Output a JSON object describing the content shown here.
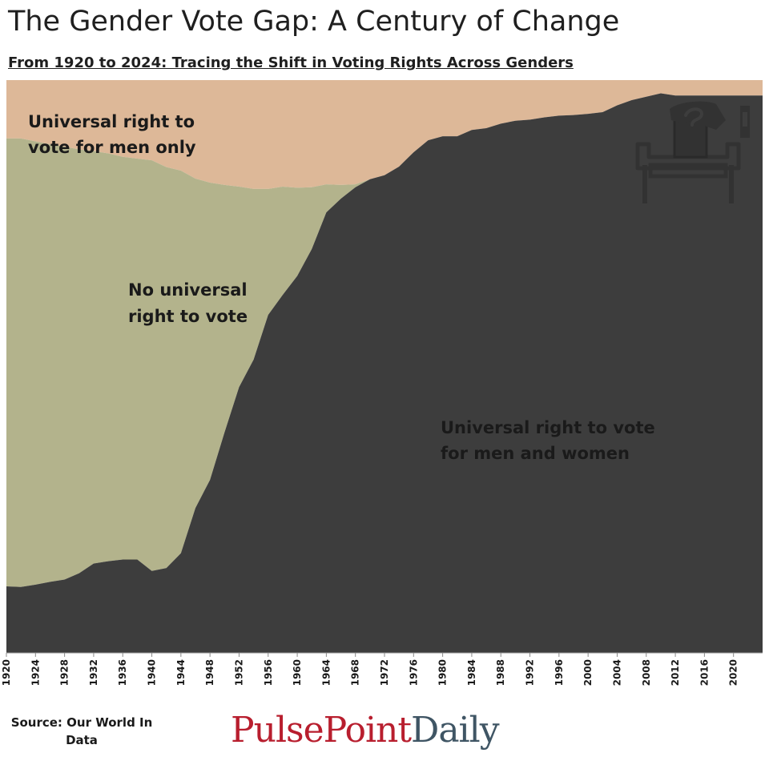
{
  "title": "The Gender Vote Gap: A Century of Change",
  "subtitle": "From 1920 to 2024: Tracing the Shift in Voting Rights Across Genders",
  "source": "Source: Our World In Data",
  "brand": {
    "part1": "PulsePoint",
    "part2": "Daily",
    "color1": "#b81e2e",
    "color2": "#3f5564"
  },
  "icon": "ballot-box-icon",
  "chart_data": {
    "type": "area",
    "stacked": true,
    "normalized": true,
    "xlim": [
      1920,
      2024
    ],
    "colors": {
      "Universal right to vote for men and women": "#3d3d3d",
      "No universal right to vote": "#b3b38c",
      "Universal right to vote for men only": "#ddb898"
    },
    "series_labels": [
      "Universal right to vote for men and women",
      "No universal right to vote",
      "Universal right to vote for men only"
    ],
    "region_labels": [
      {
        "lines": [
          "Universal right to",
          "vote for men only"
        ]
      },
      {
        "lines": [
          "No universal",
          "right to vote"
        ]
      },
      {
        "lines": [
          "Universal right to vote",
          "for men and women"
        ]
      }
    ],
    "x_ticks": [
      "1920",
      "1924",
      "1928",
      "1932",
      "1936",
      "1940",
      "1944",
      "1948",
      "1952",
      "1956",
      "1960",
      "1964",
      "1968",
      "1972",
      "1976",
      "1980",
      "1984",
      "1988",
      "1992",
      "1996",
      "2000",
      "2004",
      "2008",
      "2012",
      "2016",
      "2020"
    ],
    "x": [
      1920,
      1922,
      1924,
      1926,
      1928,
      1930,
      1932,
      1934,
      1936,
      1938,
      1940,
      1942,
      1944,
      1946,
      1948,
      1950,
      1952,
      1954,
      1956,
      1958,
      1960,
      1962,
      1964,
      1966,
      1968,
      1970,
      1972,
      1974,
      1976,
      1978,
      1980,
      1982,
      1984,
      1986,
      1988,
      1990,
      1992,
      1994,
      1996,
      1998,
      2000,
      2002,
      2004,
      2006,
      2008,
      2010,
      2012,
      2014,
      2016,
      2018,
      2020,
      2022,
      2024
    ],
    "men_and_women_share": [
      0.116,
      0.115,
      0.119,
      0.124,
      0.128,
      0.139,
      0.156,
      0.16,
      0.163,
      0.163,
      0.143,
      0.148,
      0.174,
      0.253,
      0.302,
      0.385,
      0.464,
      0.512,
      0.59,
      0.625,
      0.658,
      0.705,
      0.769,
      0.793,
      0.813,
      0.827,
      0.834,
      0.849,
      0.874,
      0.895,
      0.902,
      0.902,
      0.913,
      0.916,
      0.924,
      0.929,
      0.931,
      0.935,
      0.938,
      0.939,
      0.941,
      0.944,
      0.956,
      0.965,
      0.971,
      0.977,
      0.973,
      0.973,
      0.973,
      0.973,
      0.973,
      0.973,
      0.973
    ],
    "no_universal_share": [
      0.782,
      0.783,
      0.774,
      0.764,
      0.756,
      0.74,
      0.72,
      0.712,
      0.703,
      0.7,
      0.717,
      0.7,
      0.668,
      0.575,
      0.519,
      0.432,
      0.35,
      0.298,
      0.22,
      0.189,
      0.154,
      0.108,
      0.049,
      0.024,
      0.005,
      0.0,
      0.0,
      0.0,
      0.0,
      0.0,
      0.0,
      0.0,
      0.0,
      0.0,
      0.0,
      0.0,
      0.0,
      0.0,
      0.0,
      0.0,
      0.0,
      0.0,
      0.0,
      0.0,
      0.0,
      0.0,
      0.0,
      0.0,
      0.0,
      0.0,
      0.0,
      0.0,
      0.0
    ],
    "men_only_share": [
      0.102,
      0.102,
      0.107,
      0.112,
      0.116,
      0.121,
      0.124,
      0.128,
      0.134,
      0.137,
      0.14,
      0.152,
      0.158,
      0.172,
      0.179,
      0.183,
      0.186,
      0.19,
      0.19,
      0.186,
      0.188,
      0.187,
      0.182,
      0.183,
      0.182,
      0.173,
      0.166,
      0.151,
      0.126,
      0.105,
      0.098,
      0.098,
      0.087,
      0.084,
      0.076,
      0.071,
      0.069,
      0.065,
      0.062,
      0.061,
      0.059,
      0.056,
      0.044,
      0.035,
      0.029,
      0.023,
      0.027,
      0.027,
      0.027,
      0.027,
      0.027,
      0.027,
      0.027
    ]
  }
}
